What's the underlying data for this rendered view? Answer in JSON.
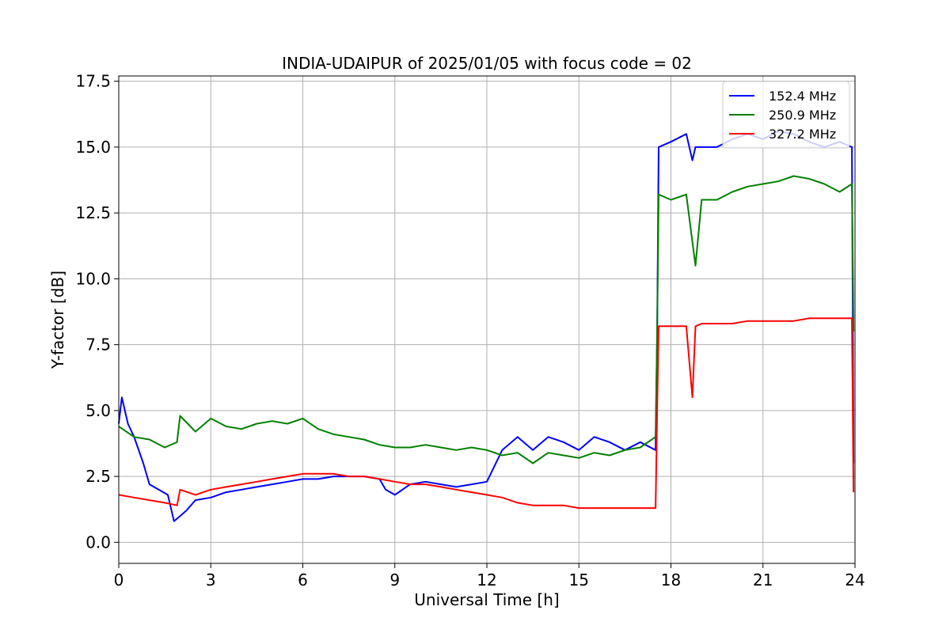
{
  "chart_data": {
    "type": "line",
    "title": "INDIA-UDAIPUR of 2025/01/05 with focus code = 02",
    "xlabel": "Universal Time [h]",
    "ylabel": "Y-factor [dB]",
    "xlim": [
      0,
      24
    ],
    "ylim": [
      -0.8,
      17.7
    ],
    "xticks": [
      0,
      3,
      6,
      9,
      12,
      15,
      18,
      21,
      24
    ],
    "xtick_labels": [
      "0",
      "3",
      "6",
      "9",
      "12",
      "15",
      "18",
      "21",
      "24"
    ],
    "yticks": [
      0.0,
      2.5,
      5.0,
      7.5,
      10.0,
      12.5,
      15.0,
      17.5
    ],
    "ytick_labels": [
      "0.0",
      "2.5",
      "5.0",
      "7.5",
      "10.0",
      "12.5",
      "15.0",
      "17.5"
    ],
    "grid": true,
    "legend_position": "top-right",
    "series": [
      {
        "name": "152.4 MHz",
        "color": "#0000ff",
        "x": [
          0,
          0.1,
          0.3,
          0.5,
          0.8,
          1.0,
          1.3,
          1.6,
          1.8,
          2.0,
          2.2,
          2.5,
          3.0,
          3.5,
          4.0,
          4.5,
          5.0,
          5.5,
          6.0,
          6.5,
          7.0,
          7.5,
          8.0,
          8.5,
          8.7,
          9.0,
          9.5,
          10.0,
          10.5,
          11.0,
          11.5,
          12.0,
          12.5,
          13.0,
          13.5,
          14.0,
          14.5,
          15.0,
          15.5,
          16.0,
          16.5,
          17.0,
          17.5,
          17.55,
          17.6,
          18.0,
          18.5,
          18.7,
          18.8,
          19.0,
          19.5,
          20.0,
          20.5,
          21.0,
          21.5,
          22.0,
          22.5,
          23.0,
          23.5,
          23.9,
          23.95
        ],
        "y": [
          4.5,
          5.5,
          4.5,
          4.0,
          3.0,
          2.2,
          2.0,
          1.8,
          0.8,
          1.0,
          1.2,
          1.6,
          1.7,
          1.9,
          2.0,
          2.1,
          2.2,
          2.3,
          2.4,
          2.4,
          2.5,
          2.5,
          2.5,
          2.4,
          2.0,
          1.8,
          2.2,
          2.3,
          2.2,
          2.1,
          2.2,
          2.3,
          3.5,
          4.0,
          3.5,
          4.0,
          3.8,
          3.5,
          4.0,
          3.8,
          3.5,
          3.8,
          3.5,
          8.0,
          15.0,
          15.2,
          15.5,
          14.5,
          15.0,
          15.0,
          15.0,
          15.3,
          15.5,
          15.3,
          15.6,
          15.5,
          15.2,
          15.0,
          15.2,
          15.0,
          3.0
        ]
      },
      {
        "name": "250.9 MHz",
        "color": "#008000",
        "x": [
          0,
          0.5,
          1.0,
          1.5,
          1.9,
          2.0,
          2.5,
          3.0,
          3.5,
          4.0,
          4.5,
          5.0,
          5.5,
          6.0,
          6.5,
          7.0,
          7.5,
          8.0,
          8.5,
          9.0,
          9.5,
          10.0,
          10.5,
          11.0,
          11.5,
          12.0,
          12.5,
          13.0,
          13.5,
          14.0,
          14.5,
          15.0,
          15.5,
          16.0,
          16.5,
          17.0,
          17.5,
          17.55,
          17.6,
          18.0,
          18.5,
          18.8,
          19.0,
          19.5,
          20.0,
          20.5,
          21.0,
          21.5,
          22.0,
          22.5,
          23.0,
          23.5,
          23.9,
          23.95
        ],
        "y": [
          4.4,
          4.0,
          3.9,
          3.6,
          3.8,
          4.8,
          4.2,
          4.7,
          4.4,
          4.3,
          4.5,
          4.6,
          4.5,
          4.7,
          4.3,
          4.1,
          4.0,
          3.9,
          3.7,
          3.6,
          3.6,
          3.7,
          3.6,
          3.5,
          3.6,
          3.5,
          3.3,
          3.4,
          3.0,
          3.4,
          3.3,
          3.2,
          3.4,
          3.3,
          3.5,
          3.6,
          4.0,
          8.0,
          13.2,
          13.0,
          13.2,
          10.5,
          13.0,
          13.0,
          13.3,
          13.5,
          13.6,
          13.7,
          13.9,
          13.8,
          13.6,
          13.3,
          13.6,
          8.0
        ]
      },
      {
        "name": "327.2 MHz",
        "color": "#ff0000",
        "x": [
          0,
          0.5,
          1.0,
          1.5,
          1.9,
          2.0,
          2.5,
          3.0,
          3.5,
          4.0,
          4.5,
          5.0,
          5.5,
          6.0,
          6.5,
          7.0,
          7.5,
          8.0,
          8.5,
          9.0,
          9.5,
          10.0,
          10.5,
          11.0,
          11.5,
          12.0,
          12.5,
          13.0,
          13.5,
          14.0,
          14.5,
          15.0,
          15.5,
          16.0,
          16.5,
          17.0,
          17.5,
          17.55,
          17.6,
          18.0,
          18.5,
          18.7,
          18.8,
          19.0,
          19.5,
          20.0,
          20.5,
          21.0,
          21.5,
          22.0,
          22.5,
          23.0,
          23.5,
          23.9,
          23.95
        ],
        "y": [
          1.8,
          1.7,
          1.6,
          1.5,
          1.4,
          2.0,
          1.8,
          2.0,
          2.1,
          2.2,
          2.3,
          2.4,
          2.5,
          2.6,
          2.6,
          2.6,
          2.5,
          2.5,
          2.4,
          2.3,
          2.2,
          2.2,
          2.1,
          2.0,
          1.9,
          1.8,
          1.7,
          1.5,
          1.4,
          1.4,
          1.4,
          1.3,
          1.3,
          1.3,
          1.3,
          1.3,
          1.3,
          5.0,
          8.2,
          8.2,
          8.2,
          5.5,
          8.2,
          8.3,
          8.3,
          8.3,
          8.4,
          8.4,
          8.4,
          8.4,
          8.5,
          8.5,
          8.5,
          8.5,
          1.9
        ]
      }
    ]
  }
}
